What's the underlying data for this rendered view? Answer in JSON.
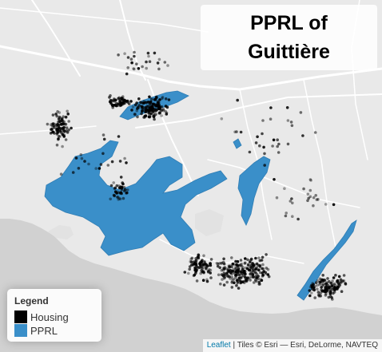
{
  "title": {
    "line1": "PPRL of",
    "line2": "Guittière"
  },
  "legend": {
    "title": "Legend",
    "items": [
      {
        "label": "Housing",
        "color": "#000000"
      },
      {
        "label": "PPRL",
        "color": "#3a8fc9"
      }
    ]
  },
  "attribution": {
    "link": "Leaflet",
    "separator": " | ",
    "text": "Tiles © Esri — Esri, DeLorme, NAVTEQ"
  },
  "colors": {
    "land": "#e9e9e9",
    "sea": "#d1d1d1",
    "road": "#f8f8f8",
    "pprl": "#3a8fc9",
    "housing": "#000000"
  }
}
